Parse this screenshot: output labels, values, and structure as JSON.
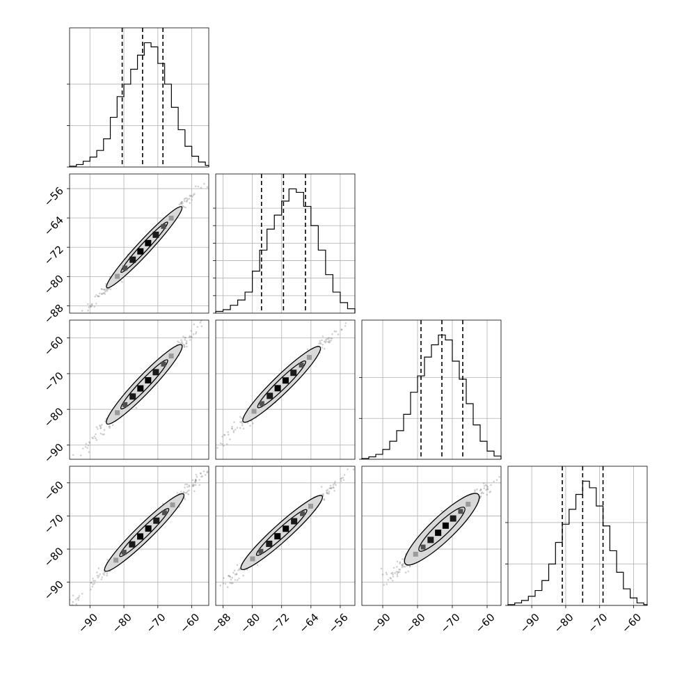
{
  "chart_data": {
    "type": "corner",
    "n_params": 4,
    "grid": true,
    "diagonal": [
      {
        "param_index": 0,
        "range": [
          -96,
          -55
        ],
        "quantiles": [
          -80.5,
          -74.5,
          -68.5
        ],
        "bin_edges": [
          -96,
          -94,
          -92,
          -90,
          -88,
          -86,
          -84,
          -82,
          -80,
          -78,
          -76,
          -74,
          -72,
          -70,
          -68,
          -66,
          -64,
          -62,
          -60,
          -58,
          -56,
          -55
        ],
        "counts": [
          1,
          3,
          7,
          12,
          20,
          34,
          60,
          85,
          100,
          118,
          135,
          150,
          145,
          125,
          100,
          72,
          45,
          25,
          13,
          6,
          2
        ],
        "yticks": [
          0,
          50,
          100
        ],
        "xticks": [
          -90,
          -80,
          -70,
          -60
        ]
      },
      {
        "param_index": 1,
        "range": [
          -90,
          -52
        ],
        "quantiles": [
          -77.5,
          -71.5,
          -65.5
        ],
        "bin_edges": [
          -90,
          -88,
          -86,
          -84,
          -82,
          -80,
          -78,
          -76,
          -74,
          -72,
          -70,
          -68,
          -66,
          -64,
          -62,
          -60,
          -58,
          -56,
          -54,
          -52
        ],
        "counts": [
          2,
          4,
          9,
          15,
          24,
          48,
          72,
          96,
          112,
          128,
          142,
          138,
          122,
          100,
          72,
          44,
          24,
          12,
          5
        ],
        "yticks": [
          0,
          20,
          40,
          60,
          80,
          100,
          120
        ],
        "xticks": [
          -88,
          -80,
          -72,
          -64,
          -56
        ]
      },
      {
        "param_index": 2,
        "range": [
          -96,
          -56
        ],
        "quantiles": [
          -79,
          -73,
          -67
        ],
        "bin_edges": [
          -96,
          -94,
          -92,
          -90,
          -88,
          -86,
          -84,
          -82,
          -80,
          -78,
          -76,
          -74,
          -72,
          -70,
          -68,
          -66,
          -64,
          -62,
          -60,
          -58,
          -56
        ],
        "counts": [
          1,
          3,
          6,
          12,
          22,
          35,
          55,
          82,
          102,
          125,
          140,
          152,
          146,
          120,
          98,
          68,
          42,
          22,
          10,
          4
        ],
        "yticks": [
          0,
          50,
          100
        ],
        "xticks": [
          -90,
          -80,
          -70,
          -60
        ]
      },
      {
        "param_index": 3,
        "range": [
          -97,
          -56
        ],
        "quantiles": [
          -81,
          -75,
          -69
        ],
        "bin_edges": [
          -97,
          -95,
          -93,
          -91,
          -89,
          -87,
          -85,
          -83,
          -81,
          -79,
          -77,
          -75,
          -73,
          -71,
          -69,
          -67,
          -65,
          -63,
          -61,
          -59,
          -57,
          -56
        ],
        "counts": [
          1,
          3,
          6,
          11,
          18,
          30,
          50,
          76,
          98,
          116,
          134,
          150,
          142,
          120,
          96,
          66,
          40,
          20,
          9,
          3,
          1
        ],
        "yticks": [
          0,
          50,
          100
        ],
        "xticks": [
          -90,
          -80,
          -70,
          -60
        ]
      }
    ],
    "x_axes": [
      {
        "range": [
          -96,
          -55
        ],
        "ticks": [
          -90,
          -80,
          -70,
          -60
        ],
        "labels": [
          "−90",
          "−80",
          "−70",
          "−60"
        ]
      },
      {
        "range": [
          -90,
          -52
        ],
        "ticks": [
          -88,
          -80,
          -72,
          -64,
          -56
        ],
        "labels": [
          "−88",
          "−80",
          "−72",
          "−64",
          "−56"
        ]
      },
      {
        "range": [
          -96,
          -56
        ],
        "ticks": [
          -90,
          -80,
          -70,
          -60
        ],
        "labels": [
          "−90",
          "−80",
          "−70",
          "−60"
        ]
      },
      {
        "range": [
          -97,
          -56
        ],
        "ticks": [
          -90,
          -80,
          -70,
          -60
        ],
        "labels": [
          "−90",
          "−80",
          "−70",
          "−60"
        ]
      }
    ],
    "y_axes": [
      {
        "row": 1,
        "range": [
          -90,
          -52
        ],
        "ticks": [
          -88,
          -80,
          -72,
          -64,
          -56
        ],
        "labels": [
          "−88",
          "−80",
          "−72",
          "−64",
          "−56"
        ]
      },
      {
        "row": 2,
        "range": [
          -94,
          -55
        ],
        "ticks": [
          -90,
          -80,
          -70,
          -60
        ],
        "labels": [
          "−90",
          "−80",
          "−70",
          "−60"
        ]
      },
      {
        "row": 3,
        "range": [
          -97,
          -55
        ],
        "ticks": [
          -90,
          -80,
          -70,
          -60
        ],
        "labels": [
          "−90",
          "−80",
          "−70",
          "−60"
        ]
      }
    ],
    "scatter_panels": [
      {
        "row": 1,
        "col": 0,
        "center": [
          -74,
          -72
        ],
        "half_length": 20,
        "half_width": 1.2
      },
      {
        "row": 2,
        "col": 0,
        "center": [
          -74,
          -73
        ],
        "half_length": 20,
        "half_width": 1.5
      },
      {
        "row": 2,
        "col": 1,
        "center": [
          -72,
          -73
        ],
        "half_length": 19,
        "half_width": 1.5
      },
      {
        "row": 3,
        "col": 0,
        "center": [
          -74,
          -75
        ],
        "half_length": 21,
        "half_width": 1.5
      },
      {
        "row": 3,
        "col": 1,
        "center": [
          -72,
          -75
        ],
        "half_length": 20,
        "half_width": 1.5
      },
      {
        "row": 3,
        "col": 2,
        "center": [
          -73,
          -74
        ],
        "half_length": 19,
        "half_width": 2.2
      }
    ]
  }
}
